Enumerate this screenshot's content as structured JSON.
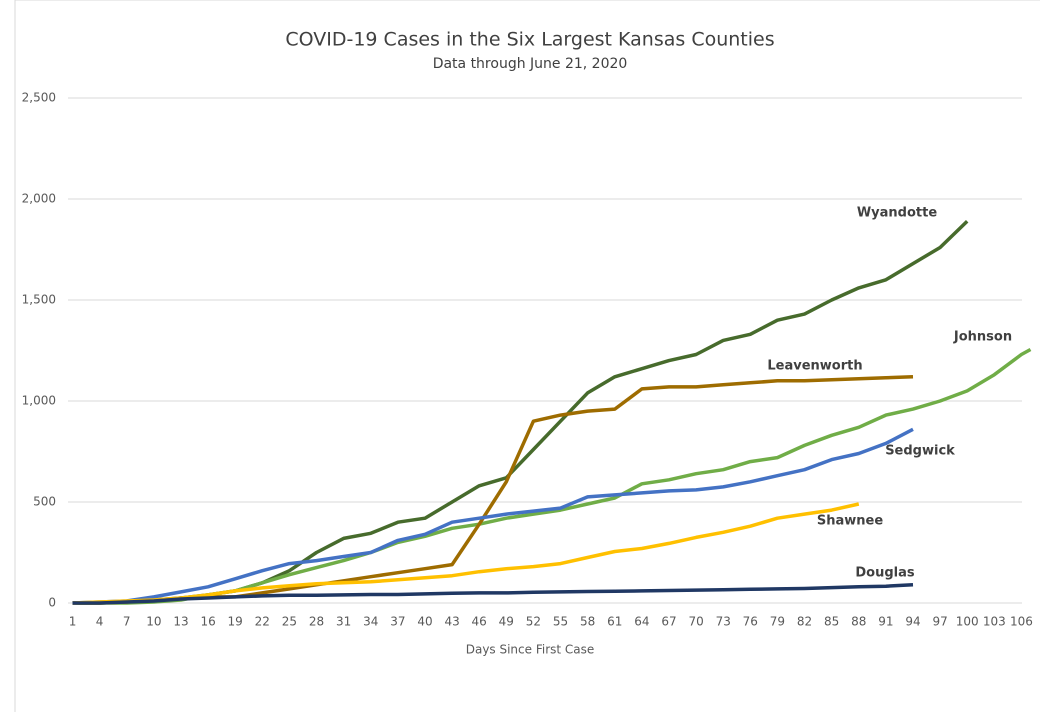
{
  "chart_data": {
    "type": "line",
    "title": "COVID-19 Cases in the Six Largest Kansas Counties",
    "subtitle": "Data through June 21, 2020",
    "x_label": "Days Since First Case",
    "x": [
      1,
      4,
      7,
      10,
      13,
      16,
      19,
      22,
      25,
      28,
      31,
      34,
      37,
      40,
      43,
      46,
      49,
      52,
      55,
      58,
      61,
      64,
      67,
      70,
      73,
      76,
      79,
      82,
      85,
      88,
      91,
      94,
      97,
      100,
      103,
      106,
      107
    ],
    "xlim": [
      0.5,
      107.5
    ],
    "xticks": [
      1,
      4,
      7,
      10,
      13,
      16,
      19,
      22,
      25,
      28,
      31,
      34,
      37,
      40,
      43,
      46,
      49,
      52,
      55,
      58,
      61,
      64,
      67,
      70,
      73,
      76,
      79,
      82,
      85,
      88,
      91,
      94,
      97,
      100,
      103,
      106
    ],
    "ylim": [
      0,
      2500
    ],
    "yticks": [
      0,
      500,
      {
        "value": 1000,
        "label": "1,000"
      },
      {
        "value": 1500,
        "label": "1,500"
      },
      {
        "value": 2000,
        "label": "2,000"
      },
      {
        "value": 2500,
        "label": "2,500"
      }
    ],
    "grid": true,
    "series": [
      {
        "name": "Wyandotte",
        "color": "#476b2c",
        "values": [
          0,
          0,
          5,
          10,
          25,
          40,
          60,
          100,
          160,
          250,
          320,
          345,
          400,
          420,
          500,
          580,
          620,
          760,
          900,
          1040,
          1120,
          1160,
          1200,
          1230,
          1300,
          1330,
          1400,
          1430,
          1500,
          1560,
          1600,
          1680,
          1760,
          1890,
          null,
          null,
          null
        ]
      },
      {
        "name": "Johnson",
        "color": "#70ad47",
        "values": [
          0,
          0,
          0,
          5,
          15,
          40,
          60,
          100,
          140,
          175,
          210,
          250,
          300,
          330,
          370,
          390,
          420,
          440,
          460,
          490,
          520,
          590,
          610,
          640,
          660,
          700,
          720,
          780,
          830,
          870,
          930,
          960,
          1000,
          1050,
          1130,
          1230,
          1255
        ]
      },
      {
        "name": "Leavenworth",
        "color": "#9e6c00",
        "values": [
          0,
          0,
          5,
          15,
          25,
          30,
          30,
          50,
          70,
          90,
          110,
          130,
          150,
          170,
          190,
          390,
          600,
          900,
          930,
          950,
          960,
          1060,
          1070,
          1070,
          1080,
          1090,
          1100,
          1100,
          1105,
          1110,
          1115,
          1120,
          null,
          null,
          null,
          null,
          null
        ]
      },
      {
        "name": "Sedgwick",
        "color": "#4472c4",
        "values": [
          0,
          5,
          10,
          30,
          55,
          80,
          120,
          160,
          195,
          210,
          230,
          250,
          310,
          340,
          400,
          420,
          440,
          455,
          470,
          525,
          535,
          545,
          555,
          560,
          575,
          600,
          630,
          660,
          710,
          740,
          790,
          860,
          null,
          null,
          null,
          null,
          null
        ]
      },
      {
        "name": "Shawnee",
        "color": "#ffc000",
        "values": [
          0,
          5,
          10,
          15,
          25,
          40,
          60,
          75,
          85,
          95,
          100,
          105,
          115,
          125,
          135,
          155,
          170,
          180,
          195,
          225,
          255,
          270,
          295,
          325,
          350,
          380,
          420,
          440,
          460,
          490,
          null,
          null,
          null,
          null,
          null,
          null,
          null
        ]
      },
      {
        "name": "Douglas",
        "color": "#203864",
        "values": [
          0,
          0,
          5,
          10,
          20,
          25,
          30,
          35,
          38,
          38,
          40,
          42,
          42,
          45,
          48,
          50,
          50,
          53,
          55,
          57,
          58,
          60,
          62,
          64,
          66,
          68,
          70,
          72,
          76,
          80,
          83,
          90,
          null,
          null,
          null,
          null,
          null
        ]
      }
    ]
  }
}
